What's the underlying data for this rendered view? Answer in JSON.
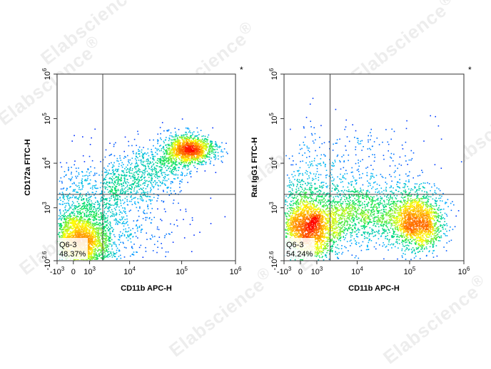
{
  "chart_data": [
    {
      "type": "scatter",
      "plot_kind": "flow-cytometry-density-dot-plot",
      "xlabel": "CD11b APC-H",
      "ylabel": "CD172a FITC-H",
      "x_scale": "biexponential",
      "y_scale": "log",
      "x_ticks": [
        {
          "value": -1000,
          "label": "-10",
          "exp": "3"
        },
        {
          "value": 0,
          "label": "0",
          "exp": ""
        },
        {
          "value": 1000,
          "label": "10",
          "exp": "3"
        },
        {
          "value": 10000,
          "label": "10",
          "exp": "4"
        },
        {
          "value": 100000,
          "label": "10",
          "exp": "5"
        },
        {
          "value": 1000000,
          "label": "10",
          "exp": "6"
        }
      ],
      "y_ticks": [
        {
          "value": -398,
          "label": "-10",
          "exp": "2.6"
        },
        {
          "value": 1000,
          "label": "10",
          "exp": "3"
        },
        {
          "value": 10000,
          "label": "10",
          "exp": "4"
        },
        {
          "value": 100000,
          "label": "10",
          "exp": "5"
        },
        {
          "value": 1000000,
          "label": "10",
          "exp": "6"
        }
      ],
      "xlim": [
        -1000,
        1000000
      ],
      "ylim": [
        -398,
        1000000
      ],
      "gate_x": 2500,
      "gate_y": 2000,
      "gate_label": "Q6-3",
      "gate_percent": "48.37%",
      "marker": "*",
      "populations": [
        {
          "center_x": 400,
          "center_y": 0,
          "count": 2900
        },
        {
          "center_x": 150000,
          "center_y": 20000,
          "count": 1350
        },
        {
          "center_x": 8000,
          "center_y": 6000,
          "count": 950,
          "smear": true
        },
        {
          "center_x": 3000,
          "center_y": 700,
          "count": 700,
          "diffuse": true
        }
      ],
      "colors": [
        "#0000ff",
        "#00b4ff",
        "#00e060",
        "#ffff00",
        "#ff9000",
        "#ff0000"
      ]
    },
    {
      "type": "scatter",
      "plot_kind": "flow-cytometry-density-dot-plot",
      "xlabel": "CD11b APC-H",
      "ylabel": "Rat IgG1 FITC-H",
      "x_scale": "biexponential",
      "y_scale": "log",
      "x_ticks": [
        {
          "value": -1000,
          "label": "-10",
          "exp": "3"
        },
        {
          "value": 0,
          "label": "0",
          "exp": ""
        },
        {
          "value": 1000,
          "label": "10",
          "exp": "3"
        },
        {
          "value": 10000,
          "label": "10",
          "exp": "4"
        },
        {
          "value": 100000,
          "label": "10",
          "exp": "5"
        },
        {
          "value": 1000000,
          "label": "10",
          "exp": "6"
        }
      ],
      "y_ticks": [
        {
          "value": -398,
          "label": "-10",
          "exp": "2.6"
        },
        {
          "value": 1000,
          "label": "10",
          "exp": "3"
        },
        {
          "value": 10000,
          "label": "10",
          "exp": "4"
        },
        {
          "value": 100000,
          "label": "10",
          "exp": "5"
        },
        {
          "value": 1000000,
          "label": "10",
          "exp": "6"
        }
      ],
      "xlim": [
        -1000,
        1000000
      ],
      "ylim": [
        -398,
        1000000
      ],
      "gate_x": 2500,
      "gate_y": 2000,
      "gate_label": "Q6-3",
      "gate_percent": "54.24%",
      "marker": "*",
      "populations": [
        {
          "center_x": 400,
          "center_y": 400,
          "count": 2700
        },
        {
          "center_x": 150000,
          "center_y": 600,
          "count": 1500
        },
        {
          "center_x": 8000,
          "center_y": 800,
          "count": 1200,
          "smear": true
        },
        {
          "center_x": 10000,
          "center_y": 5000,
          "count": 400,
          "diffuse": true
        }
      ],
      "colors": [
        "#0000ff",
        "#00b4ff",
        "#00e060",
        "#ffff00",
        "#ff9000",
        "#ff0000"
      ]
    }
  ],
  "watermark": {
    "text": "Elabscience",
    "symbol": "®"
  }
}
